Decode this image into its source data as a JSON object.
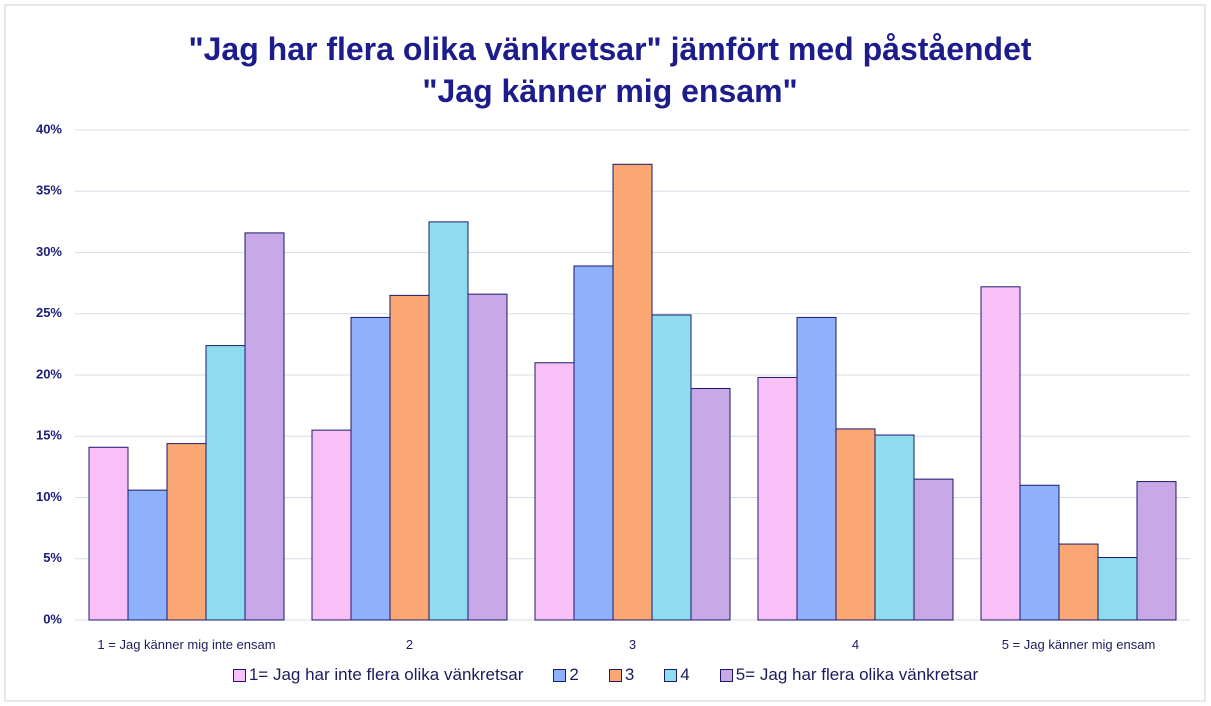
{
  "chart_data": {
    "type": "bar",
    "title": "\"Jag har flera olika vänkretsar\" jämfört med påståendet \"Jag känner mig ensam\"",
    "categories": [
      "1 = Jag känner mig inte ensam",
      "2",
      "3",
      "4",
      "5 = Jag känner mig ensam"
    ],
    "series": [
      {
        "name": "1= Jag har inte flera olika vänkretsar",
        "color": "#f9c0f7",
        "values": [
          14.1,
          15.5,
          21.0,
          19.8,
          27.2
        ]
      },
      {
        "name": "2",
        "color": "#8fb0fb",
        "values": [
          10.6,
          24.7,
          28.9,
          24.7,
          11.0
        ]
      },
      {
        "name": "3",
        "color": "#fba774",
        "values": [
          14.4,
          26.5,
          37.2,
          15.6,
          6.2
        ]
      },
      {
        "name": "4",
        "color": "#90dcef",
        "values": [
          22.4,
          32.5,
          24.9,
          15.1,
          5.1
        ]
      },
      {
        "name": "5= Jag har flera olika vänkretsar",
        "color": "#c8a8e6",
        "values": [
          31.6,
          26.6,
          18.9,
          11.5,
          11.3
        ]
      }
    ],
    "ylim": [
      0,
      40
    ],
    "yticks": [
      {
        "value": 0,
        "label": "0%"
      },
      {
        "value": 5,
        "label": "5%"
      },
      {
        "value": 10,
        "label": "10%"
      },
      {
        "value": 15,
        "label": "15%"
      },
      {
        "value": 20,
        "label": "20%"
      },
      {
        "value": 25,
        "label": "25%"
      },
      {
        "value": 30,
        "label": "30%"
      },
      {
        "value": 35,
        "label": "35%"
      },
      {
        "value": 40,
        "label": "40%"
      }
    ],
    "grid": true,
    "legend": "bottom"
  }
}
